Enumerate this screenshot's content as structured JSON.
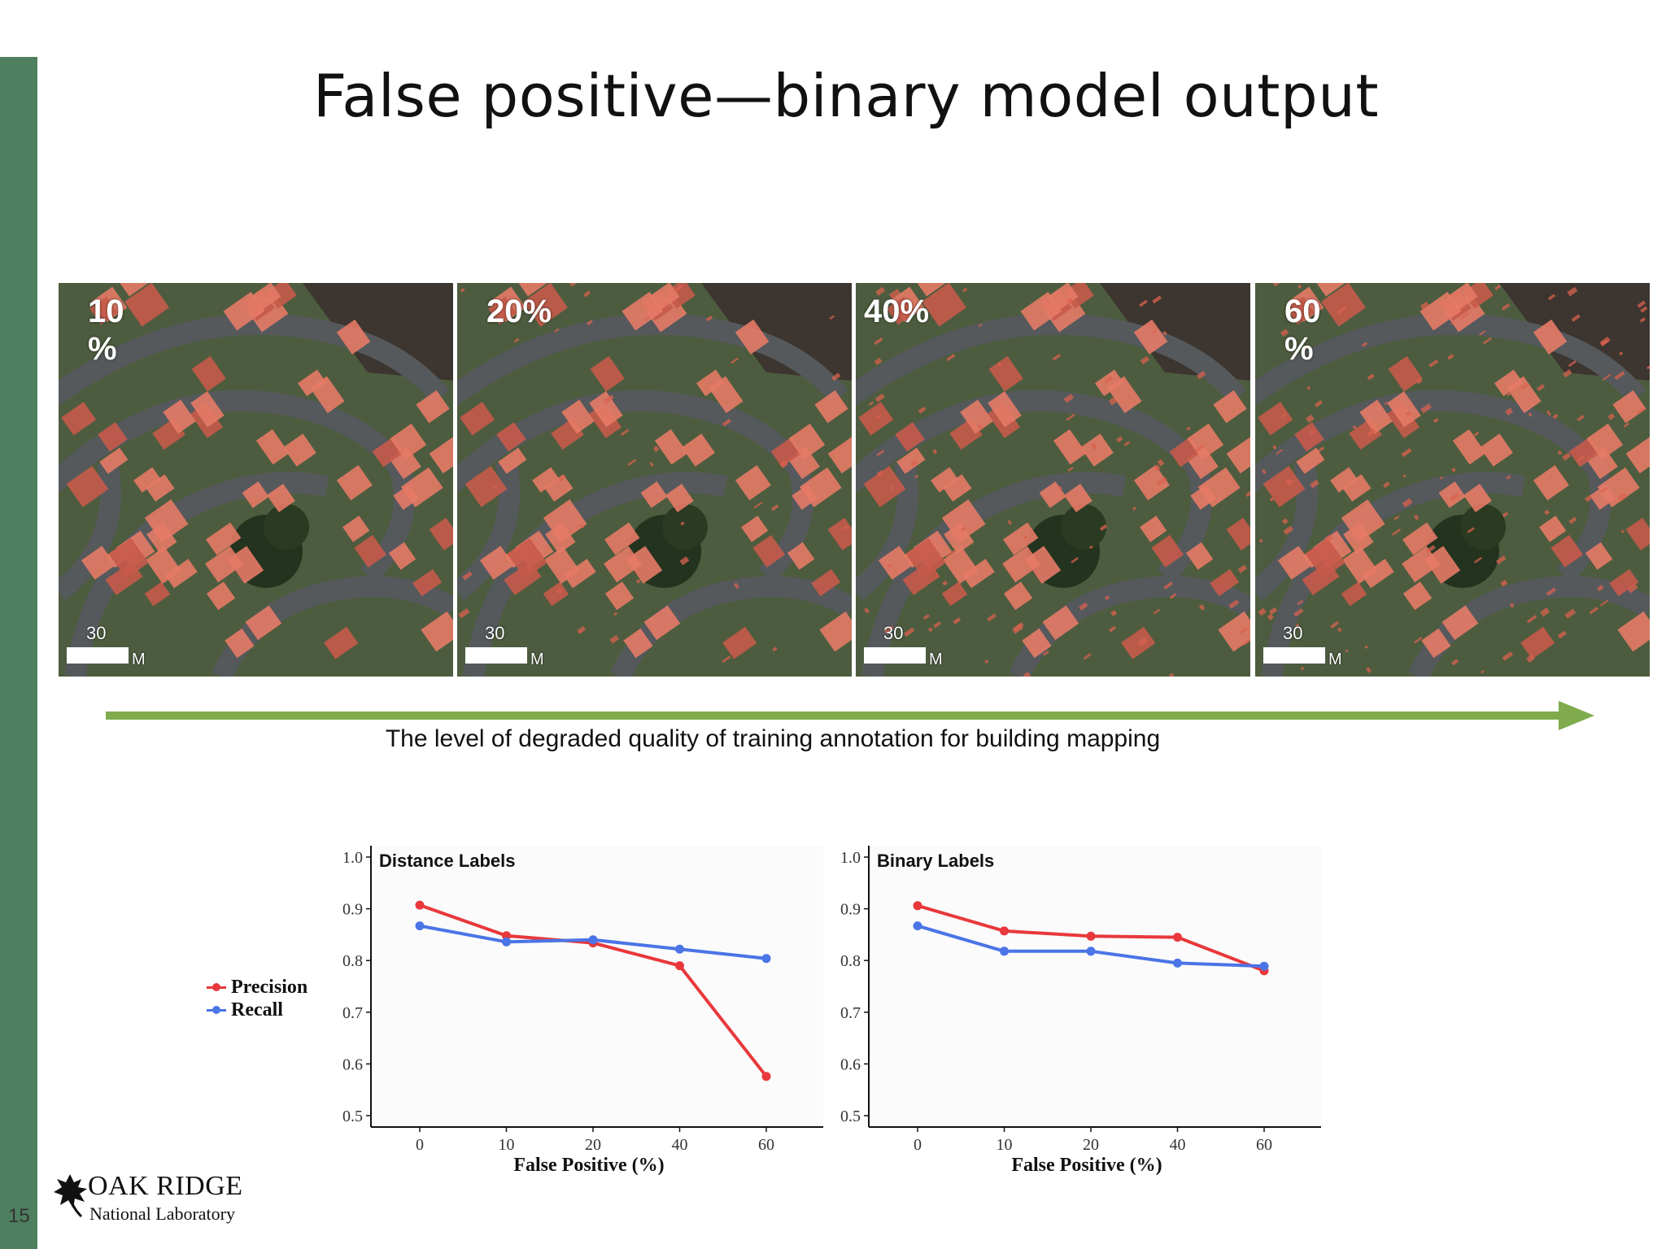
{
  "slide": {
    "title": "False positive—binary model output",
    "number": "15"
  },
  "panels": [
    {
      "label": "10 %"
    },
    {
      "label": "20%"
    },
    {
      "label": "40%"
    },
    {
      "label": "60 %"
    }
  ],
  "scalebar": {
    "value": "30",
    "unit": "M"
  },
  "arrow": {
    "caption": "The level of degraded quality of training annotation for building mapping",
    "color": "#7fab4c"
  },
  "legend": [
    {
      "label": "Precision",
      "color": "#e8383b"
    },
    {
      "label": "Recall",
      "color": "#4b74e6"
    }
  ],
  "chart_data": [
    {
      "type": "line",
      "title": "Distance Labels",
      "xlabel": "False Positive (%)",
      "ylabel": "",
      "categories": [
        "0",
        "10",
        "20",
        "40",
        "60"
      ],
      "ylim": [
        0.5,
        1.0
      ],
      "yticks": [
        "0.5",
        "0.6",
        "0.7",
        "0.8",
        "0.9",
        "1.0"
      ],
      "series": [
        {
          "name": "Precision",
          "color": "#e8383b",
          "values": [
            0.907,
            0.848,
            0.834,
            0.79,
            0.576
          ]
        },
        {
          "name": "Recall",
          "color": "#4b74e6",
          "values": [
            0.867,
            0.836,
            0.84,
            0.822,
            0.804
          ]
        }
      ]
    },
    {
      "type": "line",
      "title": "Binary Labels",
      "xlabel": "False Positive (%)",
      "ylabel": "",
      "categories": [
        "0",
        "10",
        "20",
        "40",
        "60"
      ],
      "ylim": [
        0.5,
        1.0
      ],
      "yticks": [
        "0.5",
        "0.6",
        "0.7",
        "0.8",
        "0.9",
        "1.0"
      ],
      "series": [
        {
          "name": "Precision",
          "color": "#e8383b",
          "values": [
            0.906,
            0.857,
            0.847,
            0.845,
            0.78
          ]
        },
        {
          "name": "Recall",
          "color": "#4b74e6",
          "values": [
            0.867,
            0.818,
            0.818,
            0.795,
            0.789
          ]
        }
      ]
    }
  ],
  "logo": {
    "name": "OAK RIDGE",
    "sub": "National Laboratory"
  }
}
